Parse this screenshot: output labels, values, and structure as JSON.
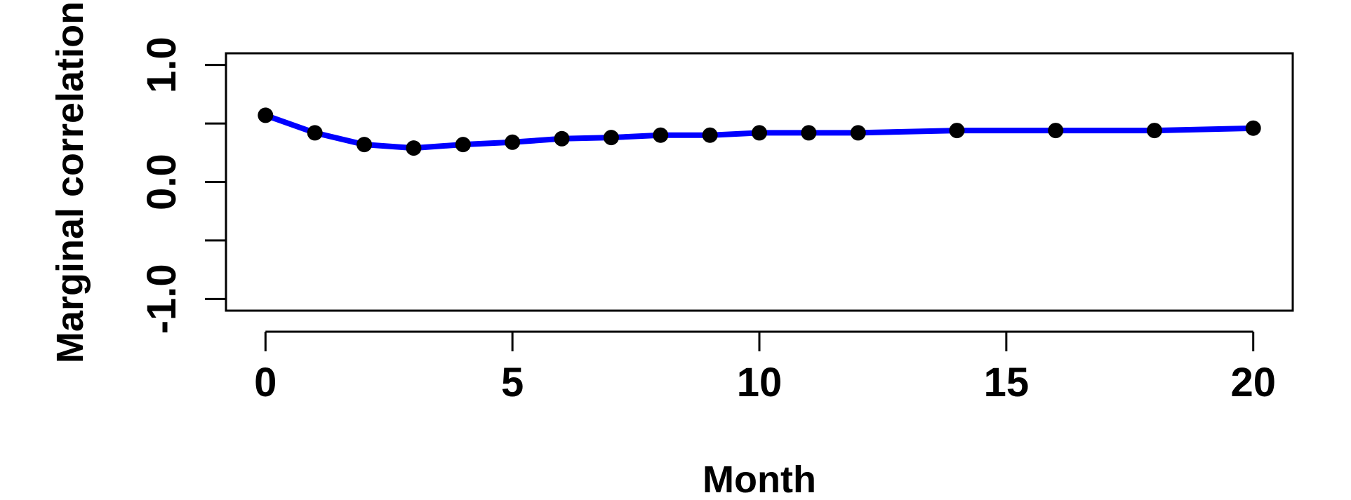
{
  "chart_data": {
    "type": "line",
    "title": "",
    "xlabel": "Month",
    "ylabel": "Marginal correlation",
    "xlim": [
      -0.8,
      20.8
    ],
    "ylim": [
      -1.1,
      1.1
    ],
    "x_ticks": [
      0,
      5,
      10,
      15,
      20
    ],
    "x_tick_labels": [
      "0",
      "5",
      "10",
      "15",
      "20"
    ],
    "y_ticks": [
      -1.0,
      -0.5,
      0.0,
      0.5,
      1.0
    ],
    "y_tick_labels": [
      "-1.0",
      "",
      "0.0",
      "",
      "1.0"
    ],
    "grid": false,
    "legend": "none",
    "line_color": "#0000ff",
    "point_color": "#000000",
    "series": [
      {
        "x": [
          0,
          1,
          2,
          3,
          4,
          5,
          6,
          7,
          8,
          9,
          10,
          11,
          12,
          14,
          16,
          18,
          20
        ],
        "values": [
          0.57,
          0.42,
          0.32,
          0.29,
          0.32,
          0.34,
          0.37,
          0.38,
          0.4,
          0.4,
          0.42,
          0.42,
          0.42,
          0.44,
          0.44,
          0.44,
          0.46
        ]
      }
    ]
  }
}
